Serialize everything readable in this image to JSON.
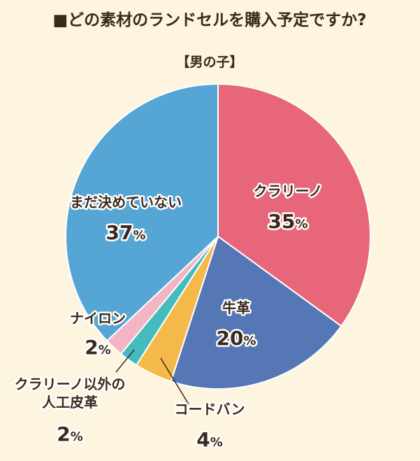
{
  "page": {
    "title": "■どの素材のランドセルを購入予定ですか?",
    "subtitle": "【男の子】"
  },
  "chart_data": {
    "type": "pie",
    "title": "■どの素材のランドセルを購入予定ですか?",
    "subtitle": "【男の子】",
    "unit": "%",
    "slices": [
      {
        "label": "クラリーノ",
        "label_lines": [
          "クラリーノ"
        ],
        "value": 35,
        "color": "#e8667a"
      },
      {
        "label": "牛革",
        "label_lines": [
          "牛革"
        ],
        "value": 20,
        "color": "#5577b5"
      },
      {
        "label": "コードバン",
        "label_lines": [
          "コードバン"
        ],
        "value": 4,
        "color": "#f5b94a"
      },
      {
        "label": "クラリーノ以外の人工皮革",
        "label_lines": [
          "クラリーノ以外の",
          "人工皮革"
        ],
        "value": 2,
        "color": "#44bcbd"
      },
      {
        "label": "ナイロン",
        "label_lines": [
          "ナイロン"
        ],
        "value": 2,
        "color": "#f1b5c3"
      },
      {
        "label": "まだ決めていない",
        "label_lines": [
          "まだ決めていない"
        ],
        "value": 37,
        "color": "#55a5d5"
      }
    ],
    "start_angle_deg": 0,
    "direction": "clockwise",
    "leader_lines": [
      "コードバン",
      "クラリーノ以外の人工皮革"
    ]
  }
}
